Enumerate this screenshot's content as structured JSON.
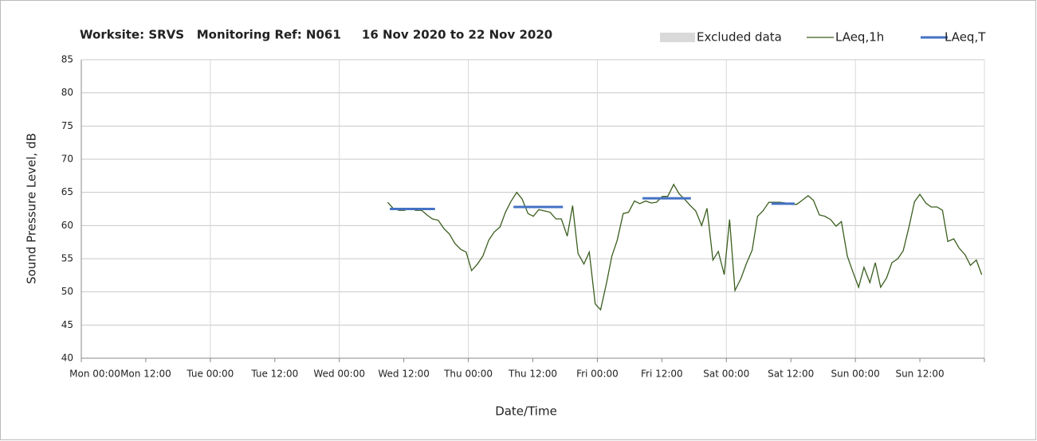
{
  "chart_data": {
    "type": "line",
    "title": "Worksite: SRVS   Monitoring Ref: N061     16 Nov 2020 to 22 Nov 2020",
    "x_label": "Date/Time",
    "y_label": "Sound Pressure Level, dB",
    "xlim": [
      0,
      168
    ],
    "xticks": [
      {
        "value": 0,
        "label": "Mon 00:00"
      },
      {
        "value": 12,
        "label": "Mon 12:00"
      },
      {
        "value": 24,
        "label": "Tue 00:00"
      },
      {
        "value": 36,
        "label": "Tue 12:00"
      },
      {
        "value": 48,
        "label": "Wed 00:00"
      },
      {
        "value": 60,
        "label": "Wed 12:00"
      },
      {
        "value": 72,
        "label": "Thu 00:00"
      },
      {
        "value": 84,
        "label": "Thu 12:00"
      },
      {
        "value": 96,
        "label": "Fri 00:00"
      },
      {
        "value": 108,
        "label": "Fri 12:00"
      },
      {
        "value": 120,
        "label": "Sat 00:00"
      },
      {
        "value": 132,
        "label": "Sat 12:00"
      },
      {
        "value": 144,
        "label": "Sun 00:00"
      },
      {
        "value": 156,
        "label": "Sun 12:00"
      },
      {
        "value": 168,
        "label": ""
      }
    ],
    "ylim": [
      40,
      85
    ],
    "yticks": [
      40,
      45,
      50,
      55,
      60,
      65,
      70,
      75,
      80,
      85
    ],
    "grid": true,
    "legend": {
      "position": "top-right",
      "excluded": {
        "name": "Excluded data",
        "color": "#d9d9d9"
      }
    },
    "series": [
      {
        "name": "LAeq,1h",
        "color": "#3a5e1e",
        "x": [
          57.0,
          58.0,
          59.1,
          60.1,
          61.2,
          62.2,
          63.3,
          64.3,
          65.3,
          66.4,
          67.4,
          68.5,
          69.5,
          70.6,
          71.6,
          72.6,
          73.7,
          74.7,
          75.8,
          76.8,
          77.9,
          78.9,
          79.9,
          81.0,
          82.0,
          83.1,
          84.1,
          85.1,
          86.2,
          87.2,
          88.3,
          89.3,
          90.4,
          91.4,
          92.4,
          93.5,
          94.5,
          95.6,
          96.6,
          97.7,
          98.7,
          99.7,
          100.8,
          101.8,
          102.9,
          103.9,
          105.0,
          106.0,
          107.0,
          108.1,
          109.1,
          110.2,
          111.2,
          112.3,
          113.3,
          114.3,
          115.4,
          116.4,
          117.5,
          118.5,
          119.6,
          120.6,
          121.6,
          122.7,
          123.7,
          124.8,
          125.8,
          126.8,
          127.9,
          128.9,
          130.0,
          131.0,
          132.1,
          133.1,
          134.1,
          135.2,
          136.2,
          137.3,
          138.3,
          139.4,
          140.4,
          141.4,
          142.5,
          143.5,
          144.6,
          145.6,
          146.7,
          147.7,
          148.7,
          149.8,
          150.8,
          151.9,
          152.9,
          154.0,
          155.0,
          156.0,
          157.1,
          158.1,
          159.2,
          160.2,
          161.2,
          162.3,
          163.3,
          164.4,
          165.4,
          166.5,
          167.5
        ],
        "values": [
          63.5,
          62.6,
          62.3,
          62.3,
          62.6,
          62.3,
          62.3,
          61.6,
          61,
          60.8,
          59.6,
          58.7,
          57.3,
          56.4,
          56,
          53.2,
          54.2,
          55.4,
          57.8,
          59,
          59.8,
          62,
          63.6,
          65,
          64,
          61.8,
          61.4,
          62.4,
          62.2,
          62,
          61,
          61,
          58.4,
          63,
          55.8,
          54.2,
          56,
          48.2,
          47.3,
          51.3,
          55.4,
          57.8,
          61.8,
          62,
          63.7,
          63.3,
          63.7,
          63.4,
          63.5,
          64.4,
          64.4,
          66.2,
          64.8,
          63.9,
          63,
          62.2,
          60,
          62.6,
          54.8,
          56.1,
          52.6,
          60.9,
          50.2,
          52,
          54.2,
          56.3,
          61.4,
          62.2,
          63.5,
          63.5,
          63.5,
          63.4,
          63.2,
          63.2,
          63.8,
          64.5,
          63.8,
          61.6,
          61.4,
          60.9,
          59.9,
          60.6,
          55.4,
          53.1,
          50.7,
          53.7,
          51.4,
          54.4,
          50.7,
          52.1,
          54.4,
          55,
          56.2,
          59.9,
          63.6,
          64.7,
          63.4,
          62.8,
          62.8,
          62.3,
          57.6,
          58,
          56.6,
          55.6,
          54,
          54.8,
          52.6
        ]
      },
      {
        "name": "LAeq,T",
        "color": "#4472c4",
        "segments": [
          {
            "x": [
              57.4,
              65.8
            ],
            "value": 62.5
          },
          {
            "x": [
              80.4,
              89.6
            ],
            "value": 62.8
          },
          {
            "x": [
              104.4,
              113.4
            ],
            "value": 64.1
          },
          {
            "x": [
              128.4,
              132.7
            ],
            "value": 63.3
          }
        ]
      }
    ]
  }
}
